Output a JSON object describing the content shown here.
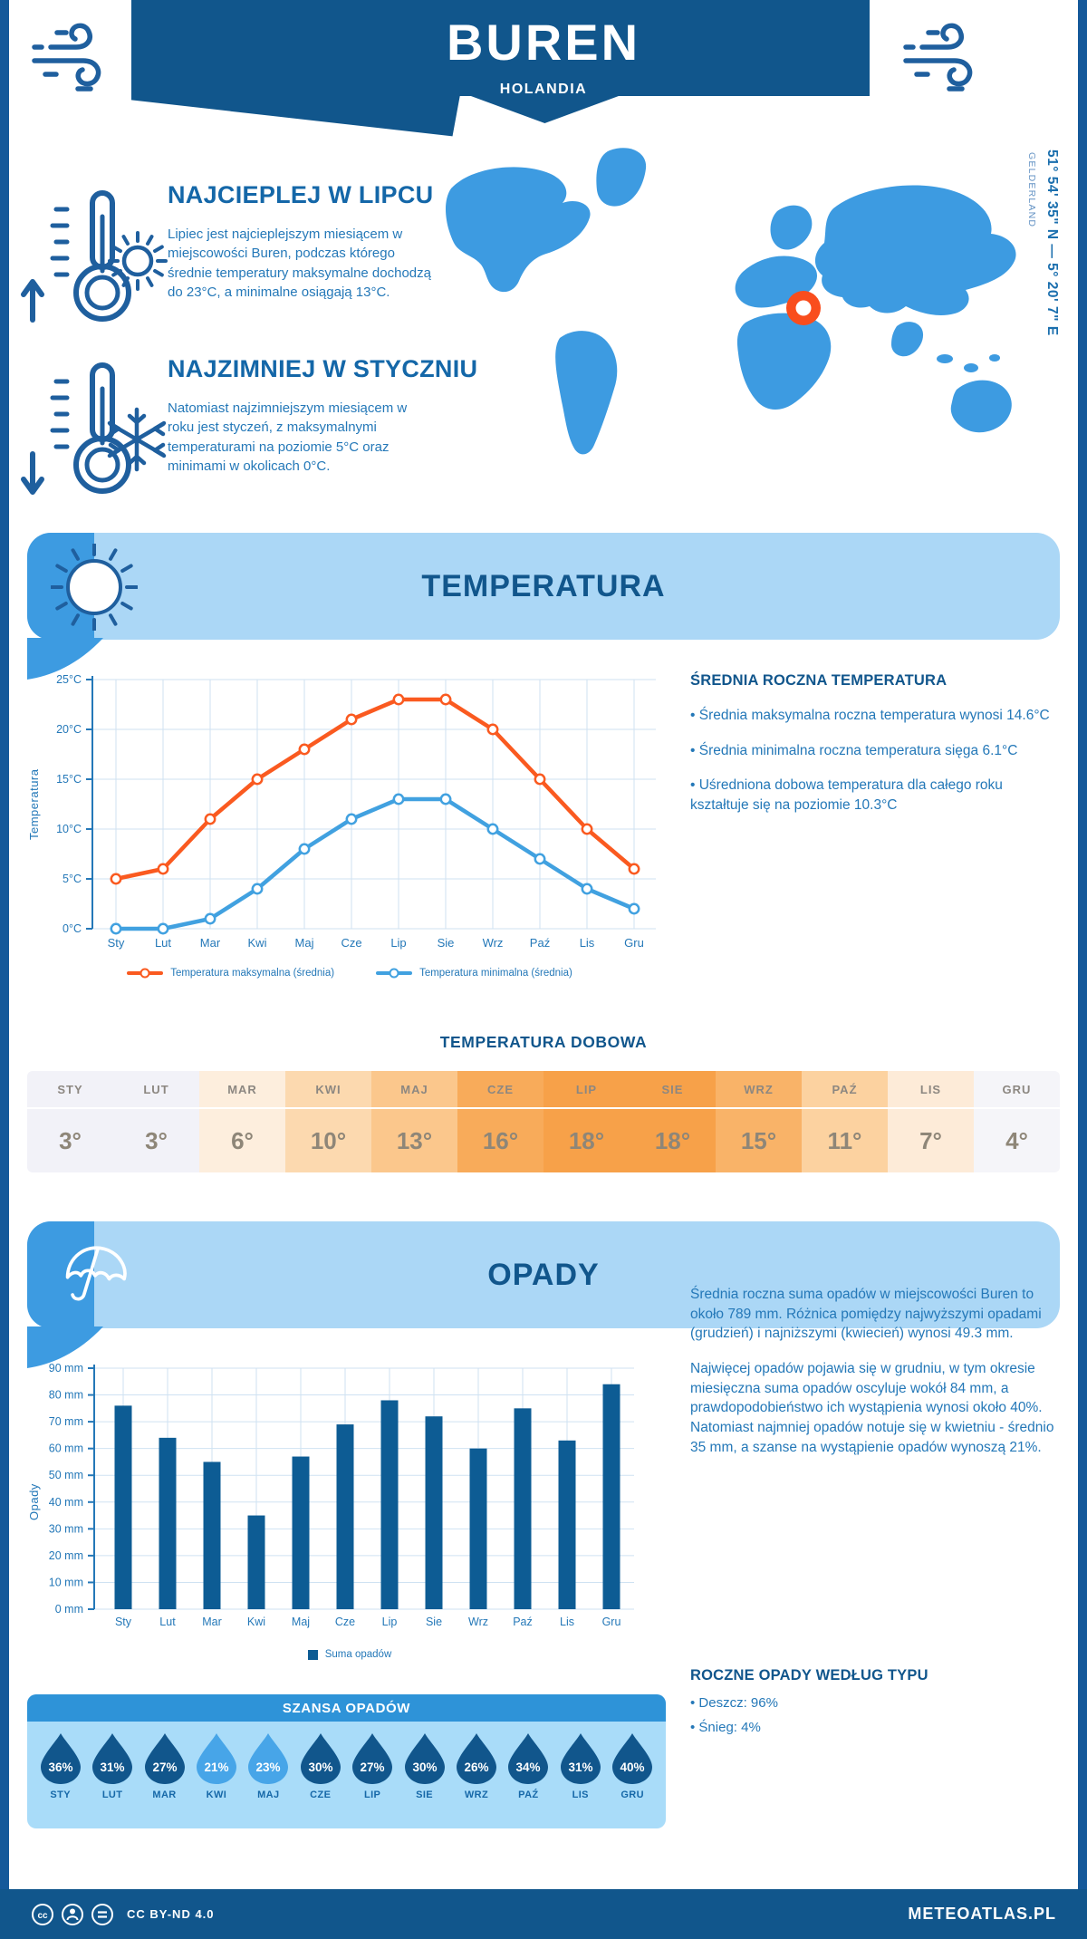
{
  "header": {
    "title": "BUREN",
    "subtitle": "HOLANDIA"
  },
  "highlights": [
    {
      "title": "NAJCIEPLEJ W LIPCU",
      "text": "Lipiec jest najcieplejszym miesiącem w miejscowości Buren, podczas którego średnie temperatury maksymalne dochodzą do 23°C, a minimalne osiągają 13°C."
    },
    {
      "title": "NAJZIMNIEJ W STYCZNIU",
      "text": "Natomiast najzimniejszym miesiącem w roku jest styczeń, z maksymalnymi temperaturami na poziomie 5°C oraz minimami w okolicach 0°C."
    }
  ],
  "map": {
    "coordinates": "51° 54' 35\" N — 5° 20' 7\" E",
    "region": "GELDERLAND",
    "land_color": "#3d9be1",
    "marker_color": "#f94d1d"
  },
  "sections": {
    "temperature_title": "TEMPERATURA",
    "precipitation_title": "OPADY"
  },
  "temperature": {
    "annual_heading": "ŚREDNIA ROCZNA TEMPERATURA",
    "annual_bullets": [
      "• Średnia maksymalna roczna temperatura wynosi 14.6°C",
      "• Średnia minimalna roczna temperatura sięga 6.1°C",
      "• Uśredniona dobowa temperatura dla całego roku kształtuje się na poziomie 10.3°C"
    ],
    "daily_heading": "TEMPERATURA DOBOWA",
    "daily_months": [
      {
        "label": "STY",
        "value": "3°",
        "color": "#f2f2f8"
      },
      {
        "label": "LUT",
        "value": "3°",
        "color": "#f2f2f8"
      },
      {
        "label": "MAR",
        "value": "6°",
        "color": "#fdeedd"
      },
      {
        "label": "KWI",
        "value": "10°",
        "color": "#fcd9af"
      },
      {
        "label": "MAJ",
        "value": "13°",
        "color": "#fbc78c"
      },
      {
        "label": "CZE",
        "value": "16°",
        "color": "#f8ab5a"
      },
      {
        "label": "LIP",
        "value": "18°",
        "color": "#f7a149"
      },
      {
        "label": "SIE",
        "value": "18°",
        "color": "#f7a149"
      },
      {
        "label": "WRZ",
        "value": "15°",
        "color": "#f9b368"
      },
      {
        "label": "PAŹ",
        "value": "11°",
        "color": "#fcd2a0"
      },
      {
        "label": "LIS",
        "value": "7°",
        "color": "#fdebd8"
      },
      {
        "label": "GRU",
        "value": "4°",
        "color": "#f5f5f9"
      }
    ]
  },
  "precipitation": {
    "text1": "Średnia roczna suma opadów w miejscowości Buren to około 789 mm. Różnica pomiędzy najwyższymi opadami (grudzień) i najniższymi (kwiecień) wynosi 49.3 mm.",
    "text2": "Najwięcej opadów pojawia się w grudniu, w tym okresie miesięczna suma opadów oscyluje wokół 84 mm, a prawdopodobieństwo ich wystąpienia wynosi około 40%. Natomiast najmniej opadów notuje się w kwietniu - średnio 35 mm, a szanse na wystąpienie opadów wynoszą 21%.",
    "legend": "Suma opadów",
    "type_heading": "ROCZNE OPADY WEDŁUG TYPU",
    "type_bullets": [
      "• Deszcz: 96%",
      "• Śnieg: 4%"
    ],
    "chance_title": "SZANSA OPADÓW",
    "chance_months": [
      {
        "label": "STY",
        "value": "36%",
        "color": "#11568c"
      },
      {
        "label": "LUT",
        "value": "31%",
        "color": "#11568c"
      },
      {
        "label": "MAR",
        "value": "27%",
        "color": "#11568c"
      },
      {
        "label": "KWI",
        "value": "21%",
        "color": "#47a5e8"
      },
      {
        "label": "MAJ",
        "value": "23%",
        "color": "#47a5e8"
      },
      {
        "label": "CZE",
        "value": "30%",
        "color": "#11568c"
      },
      {
        "label": "LIP",
        "value": "27%",
        "color": "#11568c"
      },
      {
        "label": "SIE",
        "value": "30%",
        "color": "#11568c"
      },
      {
        "label": "WRZ",
        "value": "26%",
        "color": "#11568c"
      },
      {
        "label": "PAŹ",
        "value": "34%",
        "color": "#11568c"
      },
      {
        "label": "LIS",
        "value": "31%",
        "color": "#11568c"
      },
      {
        "label": "GRU",
        "value": "40%",
        "color": "#11568c"
      }
    ]
  },
  "chart_data": [
    {
      "id": "monthly-temperature",
      "type": "line",
      "x_categories": [
        "Sty",
        "Lut",
        "Mar",
        "Kwi",
        "Maj",
        "Cze",
        "Lip",
        "Sie",
        "Wrz",
        "Paź",
        "Lis",
        "Gru"
      ],
      "ylabel": "Temperatura",
      "ylim": [
        0,
        25
      ],
      "ytick_step": 5,
      "y_tick_labels": [
        "0°C",
        "5°C",
        "10°C",
        "15°C",
        "20°C",
        "25°C"
      ],
      "grid": true,
      "legend_position": "bottom",
      "series": [
        {
          "name": "Temperatura maksymalna (średnia)",
          "color": "#fa5a20",
          "values": [
            5,
            6,
            11,
            15,
            18,
            21,
            23,
            23,
            20,
            15,
            10,
            6
          ]
        },
        {
          "name": "Temperatura minimalna (średnia)",
          "color": "#41a1e0",
          "values": [
            0,
            0,
            1,
            4,
            8,
            11,
            13,
            13,
            10,
            7,
            4,
            2
          ]
        }
      ]
    },
    {
      "id": "monthly-precipitation",
      "type": "bar",
      "categories": [
        "Sty",
        "Lut",
        "Mar",
        "Kwi",
        "Maj",
        "Cze",
        "Lip",
        "Sie",
        "Wrz",
        "Paź",
        "Lis",
        "Gru"
      ],
      "values": [
        76,
        64,
        55,
        35,
        57,
        69,
        78,
        72,
        60,
        75,
        63,
        84
      ],
      "ylabel": "Opady",
      "ylim": [
        0,
        90
      ],
      "ytick_step": 10,
      "y_tick_labels": [
        "0 mm",
        "10 mm",
        "20 mm",
        "30 mm",
        "40 mm",
        "50 mm",
        "60 mm",
        "70 mm",
        "80 mm",
        "90 mm"
      ],
      "bar_color": "#0d5c94",
      "legend": "Suma opadów",
      "grid": true
    },
    {
      "id": "precipitation-chance",
      "type": "pictogram",
      "title": "SZANSA OPADÓW",
      "categories": [
        "STY",
        "LUT",
        "MAR",
        "KWI",
        "MAJ",
        "CZE",
        "LIP",
        "SIE",
        "WRZ",
        "PAŹ",
        "LIS",
        "GRU"
      ],
      "values_percent": [
        36,
        31,
        27,
        21,
        23,
        30,
        27,
        30,
        26,
        34,
        31,
        40
      ]
    },
    {
      "id": "daily-temperature",
      "type": "table",
      "title": "TEMPERATURA DOBOWA",
      "categories": [
        "STY",
        "LUT",
        "MAR",
        "KWI",
        "MAJ",
        "CZE",
        "LIP",
        "SIE",
        "WRZ",
        "PAŹ",
        "LIS",
        "GRU"
      ],
      "values": [
        "3°",
        "3°",
        "6°",
        "10°",
        "13°",
        "16°",
        "18°",
        "18°",
        "15°",
        "11°",
        "7°",
        "4°"
      ]
    }
  ],
  "footer": {
    "license": "CC BY-ND 4.0",
    "brand": "METEOATLAS.PL"
  }
}
